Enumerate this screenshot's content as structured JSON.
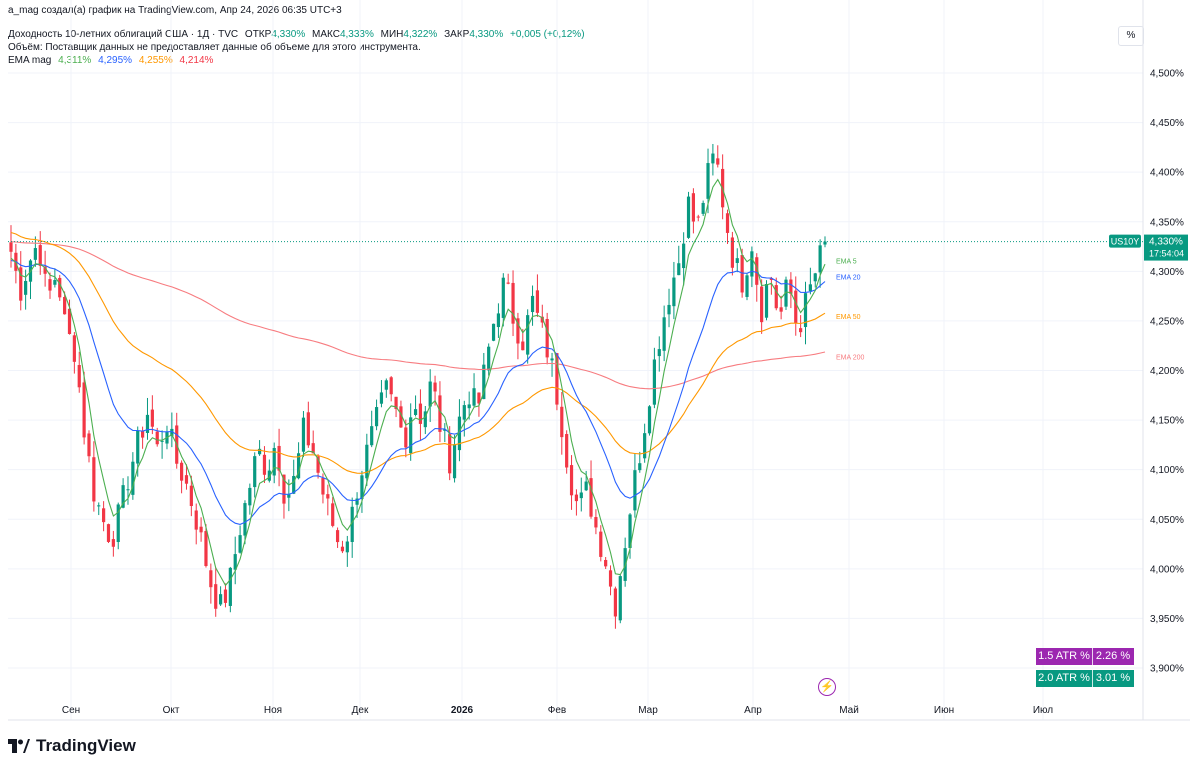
{
  "header": {
    "credit": "a_mag создал(а) график на TradingView.com, Апр 24, 2026 06:35 UTC+3",
    "instrument": "Доходность 10-летних облигаций США · 1Д · TVC",
    "ohlc": {
      "open_label": "ОТКР",
      "open": "4,330%",
      "high_label": "МАКС",
      "high": "4,333%",
      "low_label": "МИН",
      "low": "4,322%",
      "close_label": "ЗАКР",
      "close": "4,330%",
      "change": "+0,005 (+0,12%)"
    },
    "volume_note": "Объём: Поставщик данных не предоставляет данные об объеме для этого инструмента.",
    "ema_title": "EMA mag",
    "ema_values": [
      "4,311%",
      "4,295%",
      "4,255%",
      "4,214%"
    ]
  },
  "scale_button": "%",
  "colors": {
    "up": "#089981",
    "down": "#f23645",
    "ema5": "#4caf50",
    "ema20": "#2962ff",
    "ema50": "#ff9800",
    "ema200": "#f77c80",
    "atr1": "#9c27b0",
    "atr2": "#089981"
  },
  "chart_data": {
    "type": "candlestick",
    "price_axis": {
      "ticks": [
        "4,500%",
        "4,450%",
        "4,400%",
        "4,350%",
        "4,300%",
        "4,250%",
        "4,200%",
        "4,150%",
        "4,100%",
        "4,050%",
        "4,000%",
        "3,950%",
        "3,900%"
      ],
      "ylim": [
        3.88,
        4.52
      ]
    },
    "time_axis": {
      "ticks": [
        {
          "label": "Сен",
          "bold": false
        },
        {
          "label": "Окт",
          "bold": false
        },
        {
          "label": "Ноя",
          "bold": false
        },
        {
          "label": "Дек",
          "bold": false
        },
        {
          "label": "2026",
          "bold": true
        },
        {
          "label": "Фев",
          "bold": false
        },
        {
          "label": "Мар",
          "bold": false
        },
        {
          "label": "Апр",
          "bold": false
        },
        {
          "label": "Май",
          "bold": false
        },
        {
          "label": "Июн",
          "bold": false
        },
        {
          "label": "Июл",
          "bold": false
        }
      ]
    },
    "current_price": {
      "symbol": "US10Y",
      "value": "4,330%",
      "countdown": "17:54:04",
      "level": 4.33
    },
    "ema_labels": [
      {
        "name": "EMA 5",
        "level": 4.311
      },
      {
        "name": "EMA 20",
        "level": 4.295
      },
      {
        "name": "EMA 50",
        "level": 4.255
      },
      {
        "name": "EMA 200",
        "level": 4.214
      }
    ],
    "anchors": [
      4.32,
      4.28,
      4.31,
      4.33,
      4.27,
      4.3,
      4.24,
      4.22,
      4.14,
      4.08,
      4.05,
      4.03,
      4.06,
      4.1,
      4.13,
      4.16,
      4.12,
      4.15,
      4.11,
      4.09,
      4.06,
      4.02,
      3.98,
      3.96,
      3.99,
      4.04,
      4.08,
      4.12,
      4.1,
      4.13,
      4.07,
      4.09,
      4.14,
      4.12,
      4.08,
      4.05,
      4.02,
      4.04,
      4.09,
      4.12,
      4.15,
      4.18,
      4.16,
      4.13,
      4.17,
      4.15,
      4.19,
      4.14,
      4.11,
      4.15,
      4.18,
      4.16,
      4.21,
      4.26,
      4.29,
      4.25,
      4.23,
      4.27,
      4.24,
      4.21,
      4.16,
      4.1,
      4.06,
      4.08,
      4.04,
      4.01,
      3.96,
      4.02,
      4.08,
      4.13,
      4.19,
      4.24,
      4.28,
      4.31,
      4.37,
      4.34,
      4.39,
      4.42,
      4.36,
      4.31,
      4.29,
      4.33,
      4.26,
      4.3,
      4.25,
      4.29,
      4.24,
      4.27,
      4.3,
      4.33
    ]
  },
  "atr": [
    {
      "label": "1.5 ATR %",
      "value": "2.26 %"
    },
    {
      "label": "2.0 ATR %",
      "value": "3.01 %"
    }
  ],
  "brand": "TradingView"
}
